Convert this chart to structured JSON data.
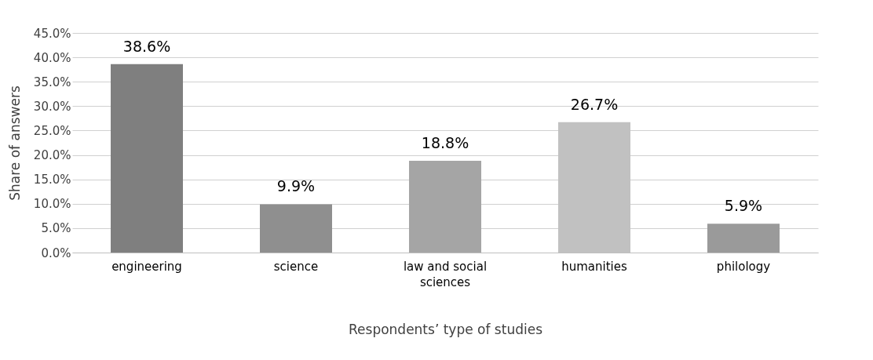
{
  "chart_data": {
    "type": "bar",
    "xlabel": "Respondents’ type of studies",
    "ylabel": "Share of answers",
    "categories": [
      "engineering",
      "science",
      "law and social sciences",
      "humanities",
      "philology"
    ],
    "values": [
      38.6,
      9.9,
      18.8,
      26.7,
      5.9
    ],
    "colors": [
      "#7f7f7f",
      "#8f8f8f",
      "#a5a5a5",
      "#c1c1c1",
      "#9a9a9a"
    ],
    "value_labels": [
      "38.6%",
      "9.9%",
      "18.8%",
      "26.7%",
      "5.9%"
    ],
    "ylim": [
      0,
      45
    ],
    "yticks": [
      {
        "value": 0,
        "label": "0.0%"
      },
      {
        "value": 5,
        "label": "5.0%"
      },
      {
        "value": 10,
        "label": "10.0%"
      },
      {
        "value": 15,
        "label": "15.0%"
      },
      {
        "value": 20,
        "label": "20.0%"
      },
      {
        "value": 25,
        "label": "25.0%"
      },
      {
        "value": 30,
        "label": "30.0%"
      },
      {
        "value": 35,
        "label": "35.0%"
      },
      {
        "value": 40,
        "label": "40.0%"
      },
      {
        "value": 45,
        "label": "45.0%"
      }
    ],
    "grid": "y"
  }
}
